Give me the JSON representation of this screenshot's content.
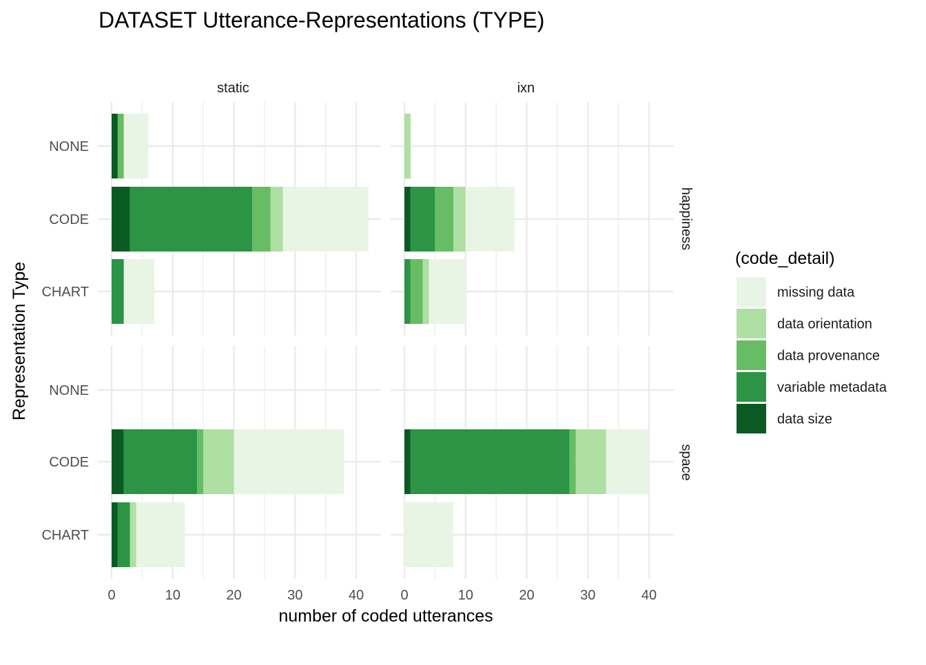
{
  "chart_data": {
    "type": "bar",
    "orientation": "horizontal",
    "stacked": true,
    "title": "DATASET Utterance-Representations (TYPE)",
    "xlabel": "number of coded utterances",
    "ylabel": "Representation Type",
    "xlim": [
      0,
      42
    ],
    "xticks": [
      0,
      10,
      20,
      30,
      40
    ],
    "grid": true,
    "categories": [
      "NONE",
      "CODE",
      "CHART"
    ],
    "facet_columns": [
      "static",
      "ixn"
    ],
    "facet_rows": [
      "happiness",
      "space"
    ],
    "legend": {
      "title": "(code_detail)",
      "position": "right",
      "entries": [
        "missing data",
        "data orientation",
        "data provenance",
        "variable metadata",
        "data size"
      ]
    },
    "series_colors": {
      "data size": "#0b5a24",
      "variable metadata": "#2c9445",
      "data provenance": "#66bd63",
      "data orientation": "#aedfa3",
      "missing data": "#e9f5e4"
    },
    "stack_order": [
      "data size",
      "variable metadata",
      "data provenance",
      "data orientation",
      "missing data"
    ],
    "panels": [
      {
        "column": "static",
        "row": "happiness",
        "bars": [
          {
            "category": "NONE",
            "values": {
              "data size": 1,
              "variable metadata": 0,
              "data provenance": 1,
              "data orientation": 0,
              "missing data": 4
            }
          },
          {
            "category": "CODE",
            "values": {
              "data size": 3,
              "variable metadata": 20,
              "data provenance": 3,
              "data orientation": 2,
              "missing data": 14
            }
          },
          {
            "category": "CHART",
            "values": {
              "data size": 0,
              "variable metadata": 2,
              "data provenance": 0,
              "data orientation": 0,
              "missing data": 5
            }
          }
        ]
      },
      {
        "column": "ixn",
        "row": "happiness",
        "bars": [
          {
            "category": "NONE",
            "values": {
              "data size": 0,
              "variable metadata": 0,
              "data provenance": 0,
              "data orientation": 1,
              "missing data": 0
            }
          },
          {
            "category": "CODE",
            "values": {
              "data size": 1,
              "variable metadata": 4,
              "data provenance": 3,
              "data orientation": 2,
              "missing data": 8
            }
          },
          {
            "category": "CHART",
            "values": {
              "data size": 0,
              "variable metadata": 1,
              "data provenance": 2,
              "data orientation": 1,
              "missing data": 6
            }
          }
        ]
      },
      {
        "column": "static",
        "row": "space",
        "bars": [
          {
            "category": "NONE",
            "values": {
              "data size": 0,
              "variable metadata": 0,
              "data provenance": 0,
              "data orientation": 0,
              "missing data": 0
            }
          },
          {
            "category": "CODE",
            "values": {
              "data size": 2,
              "variable metadata": 12,
              "data provenance": 1,
              "data orientation": 5,
              "missing data": 18
            }
          },
          {
            "category": "CHART",
            "values": {
              "data size": 1,
              "variable metadata": 2,
              "data provenance": 0,
              "data orientation": 1,
              "missing data": 8
            }
          }
        ]
      },
      {
        "column": "ixn",
        "row": "space",
        "bars": [
          {
            "category": "NONE",
            "values": {
              "data size": 0,
              "variable metadata": 0,
              "data provenance": 0,
              "data orientation": 0,
              "missing data": 0
            }
          },
          {
            "category": "CODE",
            "values": {
              "data size": 1,
              "variable metadata": 26,
              "data provenance": 1,
              "data orientation": 5,
              "missing data": 7
            }
          },
          {
            "category": "CHART",
            "values": {
              "data size": 0,
              "variable metadata": 0,
              "data provenance": 0,
              "data orientation": 0,
              "missing data": 8
            }
          }
        ]
      }
    ]
  }
}
